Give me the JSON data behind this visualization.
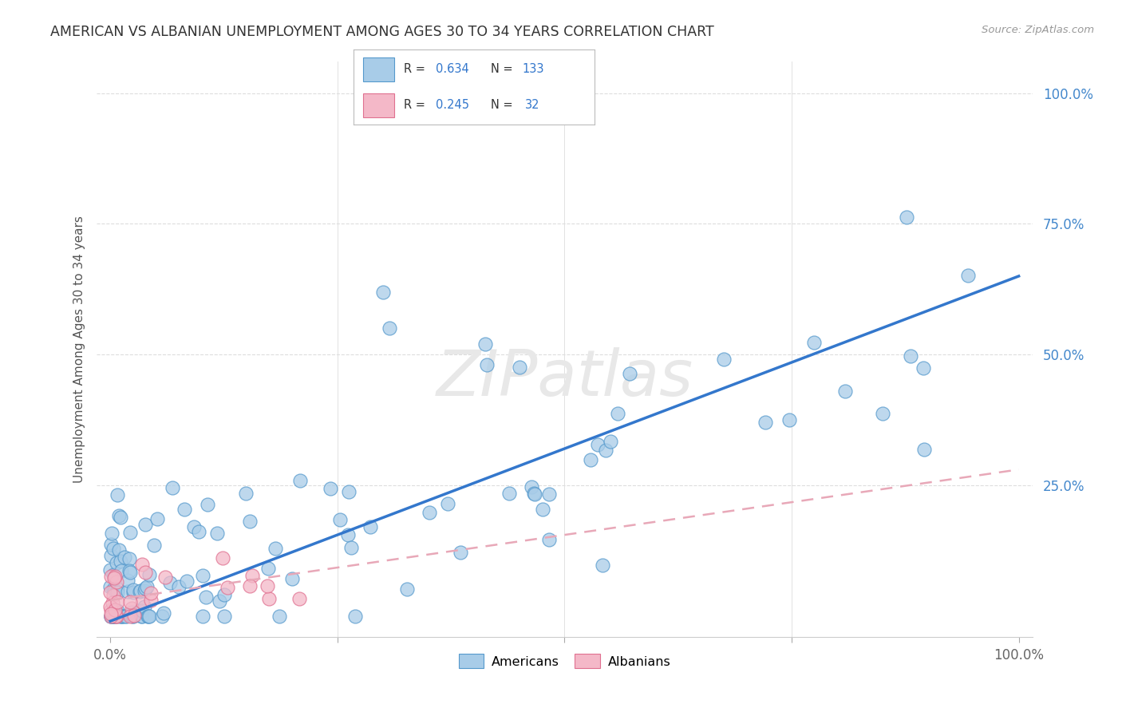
{
  "title": "AMERICAN VS ALBANIAN UNEMPLOYMENT AMONG AGES 30 TO 34 YEARS CORRELATION CHART",
  "source": "Source: ZipAtlas.com",
  "ylabel": "Unemployment Among Ages 30 to 34 years",
  "american_color": "#a8cce8",
  "albanian_color": "#f4b8c8",
  "american_edge_color": "#5599cc",
  "albanian_edge_color": "#e07090",
  "american_line_color": "#3377cc",
  "albanian_line_color": "#e8a8b8",
  "background_color": "#ffffff",
  "grid_color": "#dddddd",
  "ytick_color": "#4488cc",
  "xtick_color": "#666666",
  "title_color": "#333333",
  "source_color": "#999999",
  "watermark_color": "#e8e8e8"
}
